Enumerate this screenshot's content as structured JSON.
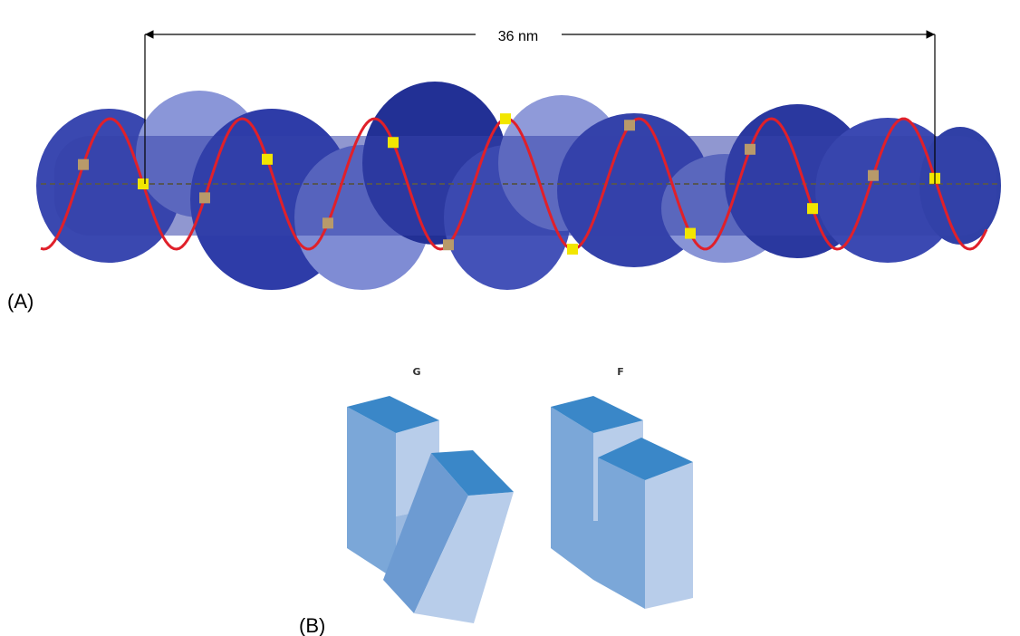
{
  "panel_a": {
    "label": "(A)",
    "measurement": "36 nm"
  },
  "panel_b": {
    "label": "(B)",
    "shapes": [
      {
        "label": "G"
      },
      {
        "label": "F"
      }
    ]
  }
}
